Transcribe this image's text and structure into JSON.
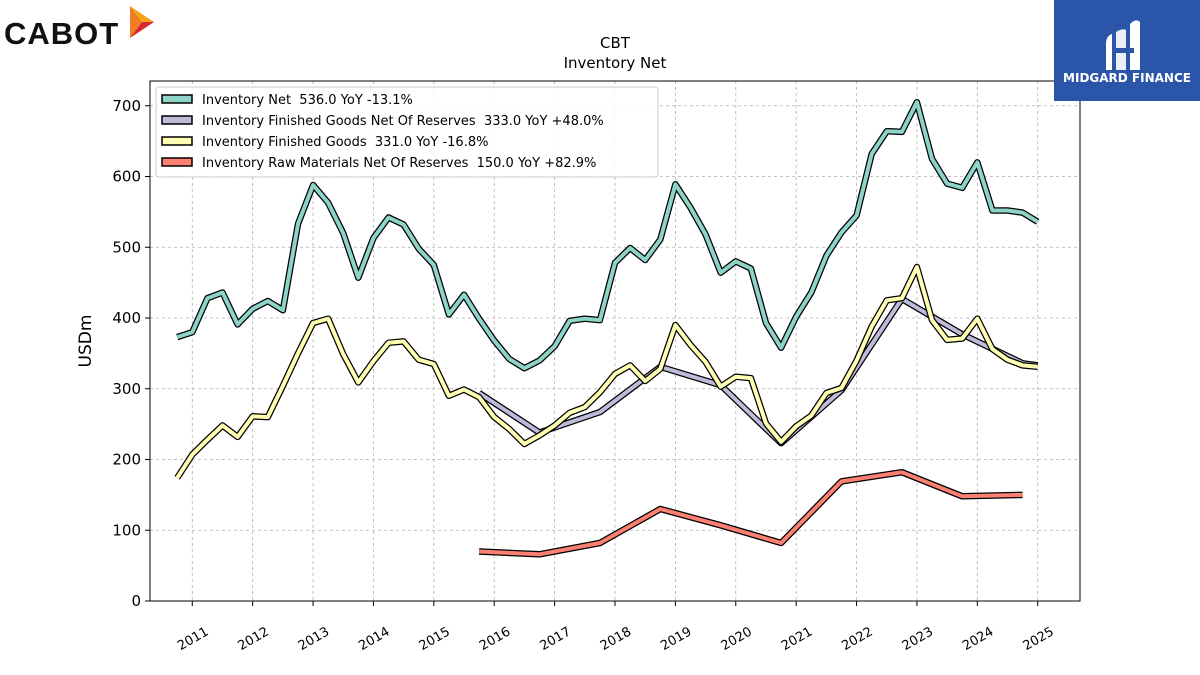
{
  "brand": {
    "company_logo_text": "CABOT",
    "publisher_logo_text": "MIDGARD FINANCE"
  },
  "colors": {
    "teal": "#8dd3c7",
    "lavender": "#bebada",
    "yellow": "#ffffb3",
    "salmon": "#fb8072",
    "publisher_blue": "#2b55a8"
  },
  "chart_data": {
    "type": "line",
    "title": "CBT",
    "subtitle": "Inventory Net",
    "xlabel": "",
    "ylabel": "USDm",
    "ylim": [
      0,
      735
    ],
    "yticks": [
      0,
      100,
      200,
      300,
      400,
      500,
      600,
      700
    ],
    "xticks": [
      "2011",
      "2012",
      "2013",
      "2014",
      "2015",
      "2016",
      "2017",
      "2018",
      "2019",
      "2020",
      "2021",
      "2022",
      "2023",
      "2024",
      "2025"
    ],
    "grid": true,
    "legend_position": "top-left",
    "series": [
      {
        "name": "Inventory Net  536.0 YoY -13.1%",
        "color": "#8dd3c7",
        "points": [
          [
            2010.75,
            373
          ],
          [
            2011.0,
            380
          ],
          [
            2011.25,
            428
          ],
          [
            2011.5,
            436
          ],
          [
            2011.75,
            391
          ],
          [
            2012.0,
            413
          ],
          [
            2012.25,
            424
          ],
          [
            2012.5,
            411
          ],
          [
            2012.75,
            533
          ],
          [
            2013.0,
            588
          ],
          [
            2013.25,
            563
          ],
          [
            2013.5,
            520
          ],
          [
            2013.75,
            457
          ],
          [
            2014.0,
            513
          ],
          [
            2014.25,
            542
          ],
          [
            2014.5,
            532
          ],
          [
            2014.75,
            498
          ],
          [
            2015.0,
            475
          ],
          [
            2015.25,
            405
          ],
          [
            2015.5,
            433
          ],
          [
            2015.75,
            399
          ],
          [
            2016.0,
            368
          ],
          [
            2016.25,
            342
          ],
          [
            2016.5,
            329
          ],
          [
            2016.75,
            340
          ],
          [
            2017.0,
            360
          ],
          [
            2017.25,
            396
          ],
          [
            2017.5,
            399
          ],
          [
            2017.75,
            397
          ],
          [
            2018.0,
            478
          ],
          [
            2018.25,
            499
          ],
          [
            2018.5,
            482
          ],
          [
            2018.75,
            511
          ],
          [
            2019.0,
            589
          ],
          [
            2019.25,
            556
          ],
          [
            2019.5,
            518
          ],
          [
            2019.75,
            464
          ],
          [
            2020.0,
            480
          ],
          [
            2020.25,
            470
          ],
          [
            2020.5,
            393
          ],
          [
            2020.75,
            358
          ],
          [
            2021.0,
            402
          ],
          [
            2021.25,
            436
          ],
          [
            2021.5,
            488
          ],
          [
            2021.75,
            521
          ],
          [
            2022.0,
            545
          ],
          [
            2022.25,
            632
          ],
          [
            2022.5,
            664
          ],
          [
            2022.75,
            663
          ],
          [
            2023.0,
            705
          ],
          [
            2023.25,
            625
          ],
          [
            2023.5,
            590
          ],
          [
            2023.75,
            584
          ],
          [
            2024.0,
            620
          ],
          [
            2024.25,
            552
          ],
          [
            2024.5,
            552
          ],
          [
            2024.75,
            549
          ],
          [
            2025.0,
            536
          ]
        ]
      },
      {
        "name": "Inventory Finished Goods Net Of Reserves  333.0 YoY +48.0%",
        "color": "#bebada",
        "points": [
          [
            2015.75,
            294
          ],
          [
            2016.75,
            238
          ],
          [
            2017.75,
            267
          ],
          [
            2018.75,
            331
          ],
          [
            2019.75,
            305
          ],
          [
            2020.75,
            223
          ],
          [
            2021.75,
            298
          ],
          [
            2022.75,
            427
          ],
          [
            2023.75,
            377
          ],
          [
            2024.75,
            336
          ],
          [
            2025.0,
            333
          ]
        ]
      },
      {
        "name": "Inventory Finished Goods  331.0 YoY -16.8%",
        "color": "#ffffb3",
        "points": [
          [
            2010.75,
            174
          ],
          [
            2011.0,
            207
          ],
          [
            2011.25,
            228
          ],
          [
            2011.5,
            248
          ],
          [
            2011.75,
            232
          ],
          [
            2012.0,
            261
          ],
          [
            2012.25,
            260
          ],
          [
            2012.5,
            304
          ],
          [
            2012.75,
            350
          ],
          [
            2013.0,
            393
          ],
          [
            2013.25,
            399
          ],
          [
            2013.5,
            349
          ],
          [
            2013.75,
            309
          ],
          [
            2014.0,
            339
          ],
          [
            2014.25,
            365
          ],
          [
            2014.5,
            367
          ],
          [
            2014.75,
            341
          ],
          [
            2015.0,
            335
          ],
          [
            2015.25,
            290
          ],
          [
            2015.5,
            299
          ],
          [
            2015.75,
            288
          ],
          [
            2016.0,
            260
          ],
          [
            2016.25,
            243
          ],
          [
            2016.5,
            222
          ],
          [
            2016.75,
            234
          ],
          [
            2017.0,
            248
          ],
          [
            2017.25,
            266
          ],
          [
            2017.5,
            274
          ],
          [
            2017.75,
            295
          ],
          [
            2018.0,
            321
          ],
          [
            2018.25,
            333
          ],
          [
            2018.5,
            311
          ],
          [
            2018.75,
            328
          ],
          [
            2019.0,
            390
          ],
          [
            2019.25,
            362
          ],
          [
            2019.5,
            338
          ],
          [
            2019.75,
            303
          ],
          [
            2020.0,
            317
          ],
          [
            2020.25,
            315
          ],
          [
            2020.5,
            251
          ],
          [
            2020.75,
            225
          ],
          [
            2021.0,
            247
          ],
          [
            2021.25,
            262
          ],
          [
            2021.5,
            294
          ],
          [
            2021.75,
            301
          ],
          [
            2022.0,
            340
          ],
          [
            2022.25,
            388
          ],
          [
            2022.5,
            425
          ],
          [
            2022.75,
            428
          ],
          [
            2023.0,
            472
          ],
          [
            2023.25,
            397
          ],
          [
            2023.5,
            369
          ],
          [
            2023.75,
            371
          ],
          [
            2024.0,
            399
          ],
          [
            2024.25,
            356
          ],
          [
            2024.5,
            341
          ],
          [
            2024.75,
            333
          ],
          [
            2025.0,
            331
          ]
        ]
      },
      {
        "name": "Inventory Raw Materials Net Of Reserves  150.0 YoY +82.9%",
        "color": "#fb8072",
        "points": [
          [
            2015.75,
            70
          ],
          [
            2016.75,
            66
          ],
          [
            2017.75,
            82
          ],
          [
            2018.75,
            130
          ],
          [
            2019.75,
            107
          ],
          [
            2020.75,
            82
          ],
          [
            2021.75,
            169
          ],
          [
            2022.75,
            182
          ],
          [
            2023.75,
            148
          ],
          [
            2024.75,
            150
          ]
        ]
      }
    ]
  }
}
